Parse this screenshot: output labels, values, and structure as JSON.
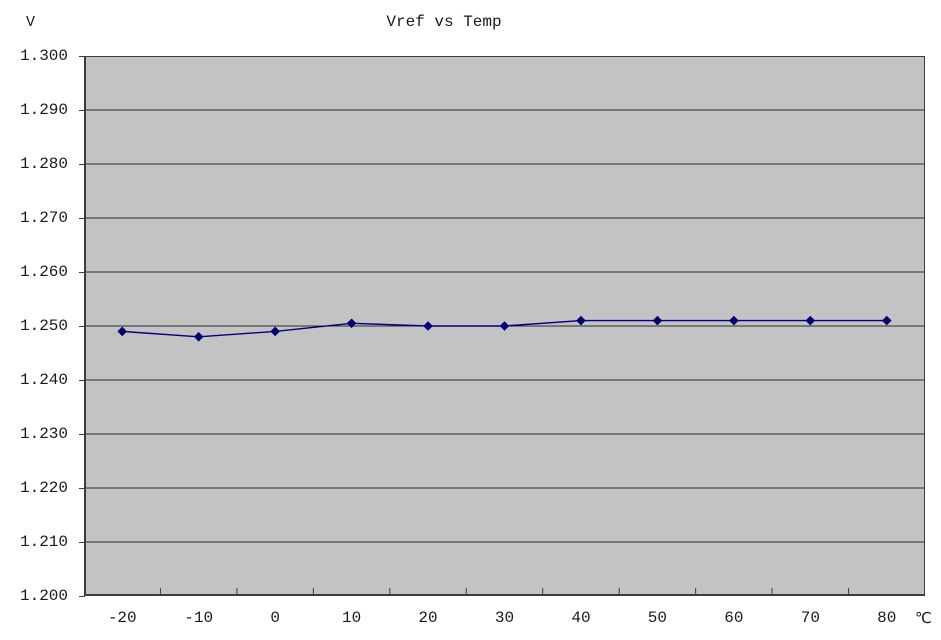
{
  "chart_data": {
    "type": "line",
    "title": "Vref vs Temp",
    "y_unit_label": "V",
    "x_unit_label": "℃",
    "categories": [
      -20,
      -10,
      0,
      10,
      20,
      30,
      40,
      50,
      60,
      70,
      80
    ],
    "xtick_labels": [
      "-20",
      "-10",
      "0",
      "10",
      "20",
      "30",
      "40",
      "50",
      "60",
      "70",
      "80"
    ],
    "series": [
      {
        "name": "Vref",
        "values": [
          1.249,
          1.248,
          1.249,
          1.2505,
          1.25,
          1.25,
          1.251,
          1.251,
          1.251,
          1.251,
          1.251
        ]
      }
    ],
    "ylim": [
      1.2,
      1.3
    ],
    "ytick_step": 0.01,
    "ytick_labels": [
      "1.300",
      "1.290",
      "1.280",
      "1.270",
      "1.260",
      "1.250",
      "1.240",
      "1.230",
      "1.220",
      "1.210",
      "1.200"
    ],
    "grid": "horizontal",
    "legend": "none",
    "marker": "diamond",
    "colors": {
      "plot_background": "#c3c3c3",
      "gridline": "#2e2e2e",
      "axis": "#3c3c3c",
      "series_line": "#000080",
      "marker_fill": "#000074",
      "text": "#1a1a1a",
      "canvas_background": "#ffffff"
    }
  }
}
